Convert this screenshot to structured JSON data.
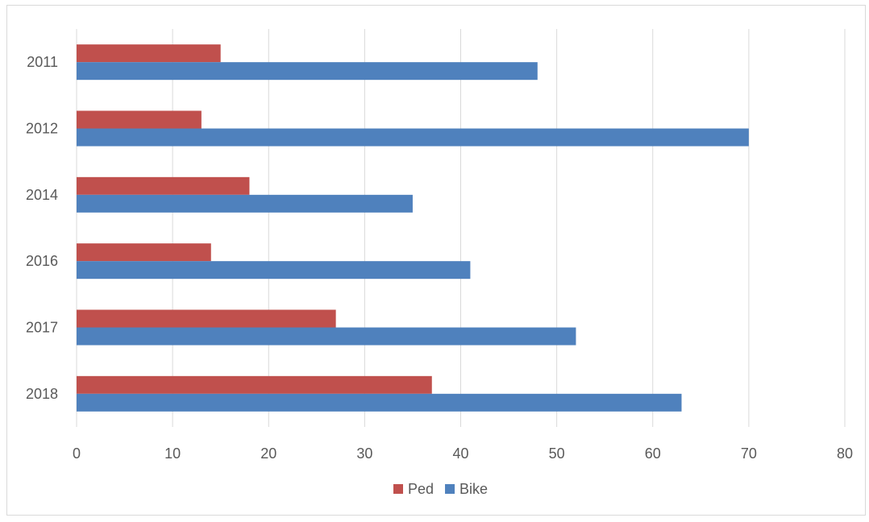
{
  "chart_data": {
    "type": "bar",
    "orientation": "horizontal",
    "categories": [
      "2011",
      "2012",
      "2014",
      "2016",
      "2017",
      "2018"
    ],
    "series": [
      {
        "name": "Ped",
        "color": "#c0504d",
        "values": [
          15,
          13,
          18,
          14,
          27,
          37
        ]
      },
      {
        "name": "Bike",
        "color": "#4f81bd",
        "values": [
          48,
          70,
          35,
          41,
          52,
          63
        ]
      }
    ],
    "xlim": [
      0,
      80
    ],
    "x_ticks": [
      "0",
      "10",
      "20",
      "30",
      "40",
      "50",
      "60",
      "70",
      "80"
    ],
    "grid": "vertical",
    "legend": "bottom",
    "title": "",
    "xlabel": "",
    "ylabel": ""
  }
}
